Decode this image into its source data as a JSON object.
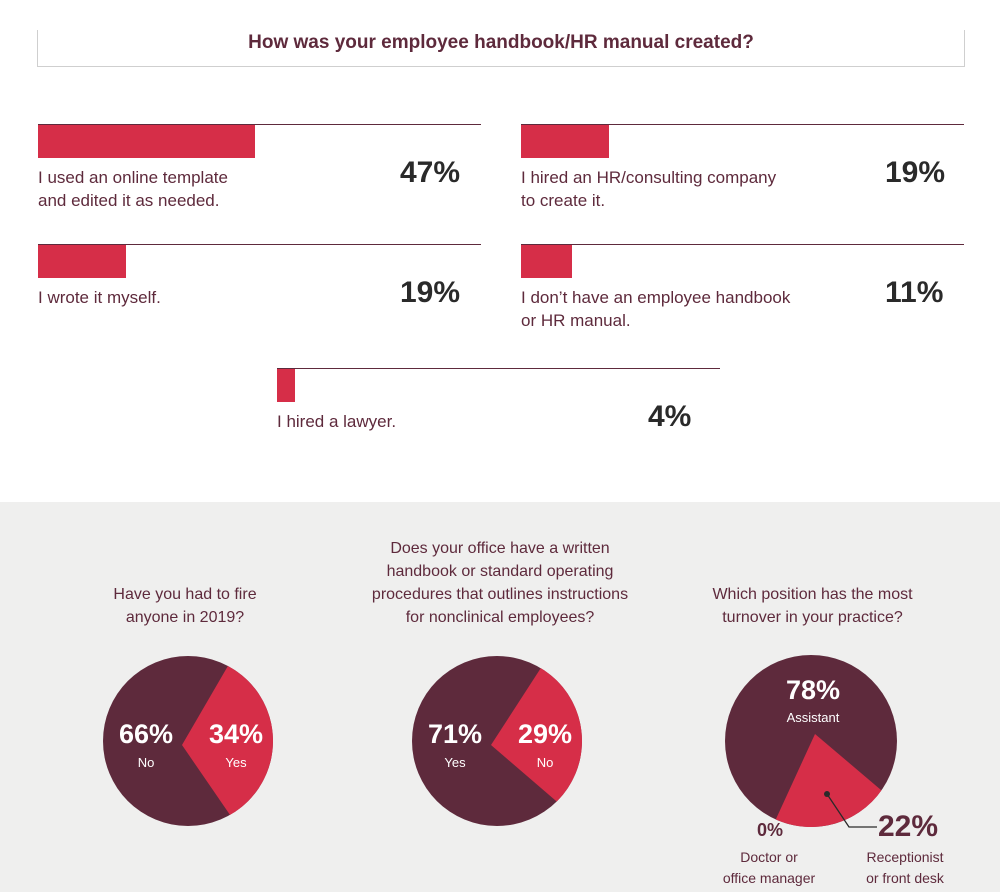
{
  "title": "How was your employee handbook/HR manual created?",
  "chart_data": [
    {
      "type": "bar",
      "title": "How was your employee handbook/HR manual created?",
      "categories": [
        "I used an online template and edited it as needed.",
        "I hired an HR/consulting company to create it.",
        "I wrote it myself.",
        "I don’t have an employee handbook or HR manual.",
        "I hired a lawyer."
      ],
      "label_lines": [
        [
          "I used an online template",
          "and edited it as needed."
        ],
        [
          "I hired an HR/consulting company",
          "to create it."
        ],
        [
          "I wrote it myself."
        ],
        [
          "I don’t have an employee handbook",
          "or HR manual."
        ],
        [
          "I hired a lawyer."
        ]
      ],
      "values": [
        47,
        19,
        19,
        11,
        4
      ],
      "value_labels": [
        "47%",
        "19%",
        "19%",
        "11%",
        "4%"
      ],
      "colors": {
        "bar": "#d62e48",
        "rule": "#5e2a3c"
      }
    },
    {
      "type": "pie",
      "title": "Have you had to fire anyone in 2019?",
      "title_lines": [
        "Have you had to fire",
        "anyone in 2019?"
      ],
      "slices": [
        {
          "label": "No",
          "value": 66,
          "value_label": "66%",
          "color": "#5e2a3c"
        },
        {
          "label": "Yes",
          "value": 34,
          "value_label": "34%",
          "color": "#d62e48"
        }
      ]
    },
    {
      "type": "pie",
      "title": "Does your office have a written handbook or standard operating procedures that outlines instructions for nonclinical employees?",
      "title_lines": [
        "Does your office have a written",
        "handbook or standard operating",
        "procedures that outlines instructions",
        "for nonclinical employees?"
      ],
      "slices": [
        {
          "label": "Yes",
          "value": 71,
          "value_label": "71%",
          "color": "#5e2a3c"
        },
        {
          "label": "No",
          "value": 29,
          "value_label": "29%",
          "color": "#d62e48"
        }
      ]
    },
    {
      "type": "pie",
      "title": "Which position has the most turnover in your practice?",
      "title_lines": [
        "Which position has the most",
        "turnover in your practice?"
      ],
      "slices": [
        {
          "label": "Assistant",
          "label_lines": [
            "Assistant"
          ],
          "value": 78,
          "value_label": "78%",
          "color": "#5e2a3c"
        },
        {
          "label": "Receptionist or front desk",
          "label_lines": [
            "Receptionist",
            "or front desk"
          ],
          "value": 22,
          "value_label": "22%",
          "color": "#d62e48"
        },
        {
          "label": "Doctor or office manager",
          "label_lines": [
            "Doctor or",
            "office manager"
          ],
          "value": 0,
          "value_label": "0%",
          "color": "#5e2a3c"
        }
      ]
    }
  ]
}
